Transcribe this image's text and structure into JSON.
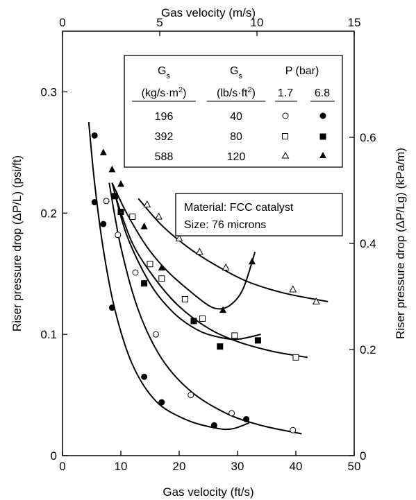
{
  "chart_data": {
    "type": "scatter",
    "axes": {
      "x_bottom": {
        "label": "Gas velocity (ft/s)",
        "range": [
          0,
          50
        ],
        "ticks": [
          0,
          10,
          20,
          30,
          40,
          50
        ]
      },
      "x_top": {
        "label": "Gas velocity (m/s)",
        "range": [
          0,
          15
        ],
        "ticks": [
          0,
          5,
          10,
          15
        ]
      },
      "y_left": {
        "label": "Riser pressure drop (ΔP/L) (psi/ft)",
        "range": [
          0,
          0.35
        ],
        "ticks": [
          0,
          0.1,
          0.2,
          0.3
        ],
        "tick_labels": [
          "0",
          "0.1",
          "0.2",
          "0.3"
        ]
      },
      "y_right": {
        "label": "Riser pressure drop (ΔP/Lg) (kPa/m)",
        "range": [
          0,
          0.8
        ],
        "ticks": [
          0,
          0.2,
          0.4,
          0.6
        ],
        "tick_labels": [
          "0",
          "0.2",
          "0.4",
          "0.6"
        ]
      }
    },
    "legend_table": {
      "headers": [
        "Gs",
        "Gs",
        "P (bar)"
      ],
      "units": [
        "(kg/s·m2)",
        "(lb/s·ft2)"
      ],
      "pressures": [
        "1.7",
        "6.8"
      ],
      "rows": [
        {
          "si": "196",
          "eng": "40"
        },
        {
          "si": "392",
          "eng": "80"
        },
        {
          "si": "588",
          "eng": "120"
        }
      ]
    },
    "annotation": [
      "Material: FCC catalyst",
      "Size: 76 microns"
    ],
    "series": [
      {
        "name": "196 kg/s·m2, 1.7 bar",
        "marker": "open-circle",
        "points": [
          [
            7.5,
            0.21
          ],
          [
            9.5,
            0.182
          ],
          [
            12.5,
            0.151
          ],
          [
            16,
            0.1
          ],
          [
            22,
            0.05
          ],
          [
            29,
            0.035
          ],
          [
            39.5,
            0.021
          ]
        ]
      },
      {
        "name": "196 kg/s·m2, 6.8 bar",
        "marker": "filled-circle",
        "points": [
          [
            5.5,
            0.264
          ],
          [
            5.5,
            0.209
          ],
          [
            7,
            0.191
          ],
          [
            8.5,
            0.122
          ],
          [
            14,
            0.065
          ],
          [
            17,
            0.044
          ],
          [
            26,
            0.025
          ],
          [
            31.5,
            0.03
          ]
        ]
      },
      {
        "name": "392 kg/s·m2, 1.7 bar",
        "marker": "open-square",
        "points": [
          [
            12,
            0.197
          ],
          [
            15,
            0.158
          ],
          [
            17,
            0.146
          ],
          [
            21,
            0.129
          ],
          [
            24,
            0.113
          ],
          [
            29.5,
            0.099
          ],
          [
            40,
            0.081
          ]
        ]
      },
      {
        "name": "392 kg/s·m2, 6.8 bar",
        "marker": "filled-square",
        "points": [
          [
            9,
            0.214
          ],
          [
            10,
            0.201
          ],
          [
            14,
            0.142
          ],
          [
            22.5,
            0.111
          ],
          [
            27,
            0.09
          ],
          [
            33.5,
            0.095
          ]
        ]
      },
      {
        "name": "588 kg/s·m2, 1.7 bar",
        "marker": "open-triangle",
        "points": [
          [
            14.5,
            0.207
          ],
          [
            16.5,
            0.197
          ],
          [
            20,
            0.179
          ],
          [
            23.5,
            0.168
          ],
          [
            28,
            0.155
          ],
          [
            39.5,
            0.137
          ],
          [
            43.5,
            0.127
          ]
        ]
      },
      {
        "name": "588 kg/s·m2, 6.8 bar",
        "marker": "filled-triangle",
        "points": [
          [
            7,
            0.25
          ],
          [
            8.5,
            0.236
          ],
          [
            10,
            0.224
          ],
          [
            14,
            0.189
          ],
          [
            17,
            0.155
          ],
          [
            27.5,
            0.12
          ],
          [
            32.5,
            0.16
          ]
        ]
      }
    ],
    "curves": [
      {
        "name": "fit-196-1.7",
        "points": [
          [
            8,
            0.225
          ],
          [
            10,
            0.172
          ],
          [
            13,
            0.12
          ],
          [
            17,
            0.08
          ],
          [
            22,
            0.053
          ],
          [
            28,
            0.035
          ],
          [
            34,
            0.025
          ],
          [
            41,
            0.018
          ]
        ]
      },
      {
        "name": "fit-196-6.8",
        "points": [
          [
            4.5,
            0.275
          ],
          [
            5.5,
            0.225
          ],
          [
            7,
            0.17
          ],
          [
            9,
            0.12
          ],
          [
            12,
            0.075
          ],
          [
            16,
            0.045
          ],
          [
            21,
            0.03
          ],
          [
            26,
            0.023
          ],
          [
            29,
            0.022
          ],
          [
            32,
            0.027
          ]
        ]
      },
      {
        "name": "fit-392-1.7",
        "points": [
          [
            9,
            0.215
          ],
          [
            12,
            0.175
          ],
          [
            16,
            0.145
          ],
          [
            20,
            0.123
          ],
          [
            25,
            0.105
          ],
          [
            30,
            0.094
          ],
          [
            36,
            0.086
          ],
          [
            42,
            0.081
          ]
        ]
      },
      {
        "name": "fit-392-6.8",
        "points": [
          [
            8.5,
            0.225
          ],
          [
            11,
            0.182
          ],
          [
            15,
            0.142
          ],
          [
            19,
            0.118
          ],
          [
            23,
            0.104
          ],
          [
            26.5,
            0.098
          ],
          [
            30,
            0.096
          ],
          [
            34,
            0.1
          ]
        ]
      },
      {
        "name": "fit-588-1.7",
        "points": [
          [
            13,
            0.212
          ],
          [
            17,
            0.19
          ],
          [
            22,
            0.17
          ],
          [
            27,
            0.155
          ],
          [
            32,
            0.143
          ],
          [
            38,
            0.134
          ],
          [
            45.5,
            0.127
          ]
        ]
      },
      {
        "name": "fit-588-6.8",
        "points": [
          [
            8.5,
            0.225
          ],
          [
            11,
            0.2
          ],
          [
            14.5,
            0.172
          ],
          [
            18,
            0.152
          ],
          [
            22,
            0.135
          ],
          [
            25,
            0.124
          ],
          [
            27,
            0.121
          ],
          [
            29,
            0.125
          ],
          [
            31,
            0.138
          ],
          [
            33,
            0.168
          ]
        ]
      }
    ]
  }
}
